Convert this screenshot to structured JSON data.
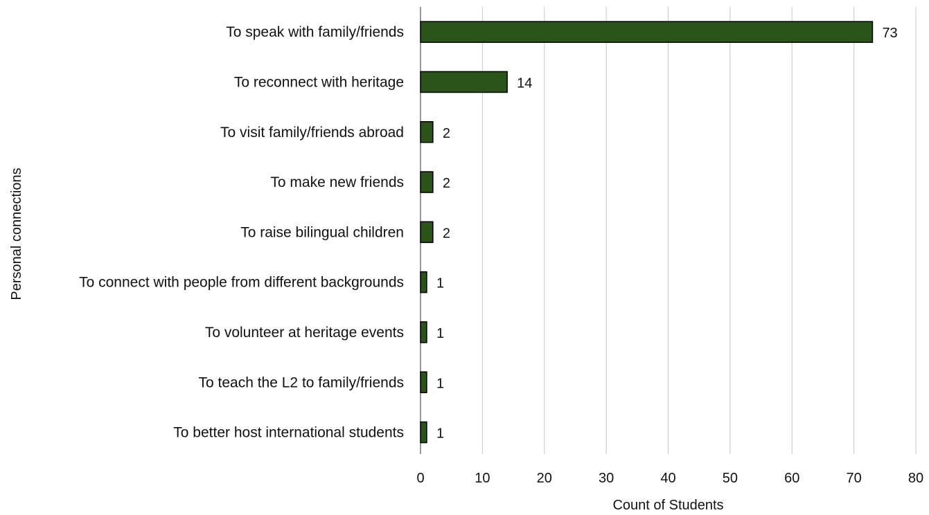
{
  "chart_data": {
    "type": "bar",
    "orientation": "horizontal",
    "categories": [
      "To speak with family/friends",
      "To reconnect with heritage",
      "To visit family/friends abroad",
      "To make new friends",
      "To raise bilingual children",
      "To connect with people from different backgrounds",
      "To volunteer at heritage events",
      "To teach the L2 to family/friends",
      "To better host international students"
    ],
    "values": [
      73,
      14,
      2,
      2,
      2,
      1,
      1,
      1,
      1
    ],
    "data_labels": [
      "73",
      "14",
      "2",
      "2",
      "2",
      "1",
      "1",
      "1",
      "1"
    ],
    "xlabel": "Count of Students",
    "ylabel": "Personal connections",
    "xlim": [
      0,
      80
    ],
    "xticks": [
      0,
      10,
      20,
      30,
      40,
      50,
      60,
      70,
      80
    ],
    "xtick_labels": [
      "0",
      "10",
      "20",
      "30",
      "40",
      "50",
      "60",
      "70",
      "80"
    ],
    "grid": "vertical",
    "legend": "none",
    "colors": {
      "bar_fill": "#2a5418",
      "bar_stroke": "#000000",
      "gridline": "#c8c8c8",
      "axis": "#555555",
      "text": "#111111"
    }
  }
}
